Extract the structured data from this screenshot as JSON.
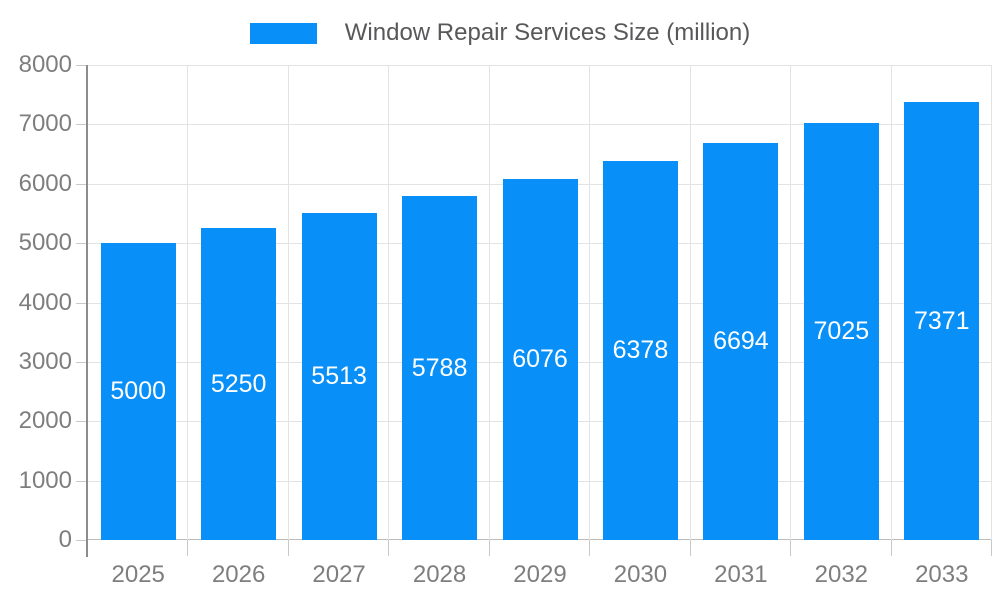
{
  "chart_data": {
    "type": "bar",
    "title": "Window Repair Services Size (million)",
    "legend_entries": [
      "Window Repair Services Size (million)"
    ],
    "legend_position": "top-center",
    "categories": [
      "2025",
      "2026",
      "2027",
      "2028",
      "2029",
      "2030",
      "2031",
      "2032",
      "2033"
    ],
    "series": [
      {
        "name": "Window Repair Services Size (million)",
        "values": [
          5000,
          5250,
          5513,
          5788,
          6076,
          6378,
          6694,
          7025,
          7371
        ]
      }
    ],
    "data_labels": [
      "5000",
      "5250",
      "5513",
      "5788",
      "6076",
      "6378",
      "6694",
      "7025",
      "7371"
    ],
    "xlabel": "",
    "ylabel": "",
    "ylim": [
      0,
      8000
    ],
    "yticks": [
      "0",
      "1000",
      "2000",
      "3000",
      "4000",
      "5000",
      "6000",
      "7000",
      "8000"
    ],
    "grid": true,
    "colors": {
      "bar": "#0890F8",
      "bar_value_text": "#ffffff",
      "axis_text": "#7e7e7e",
      "legend_text": "#58585a",
      "gridline": "#e3e3e3",
      "baseline": "#bdbdbd",
      "axis_line": "#8c8c8c",
      "tick": "#c9c9c9",
      "background": "#ffffff"
    }
  }
}
